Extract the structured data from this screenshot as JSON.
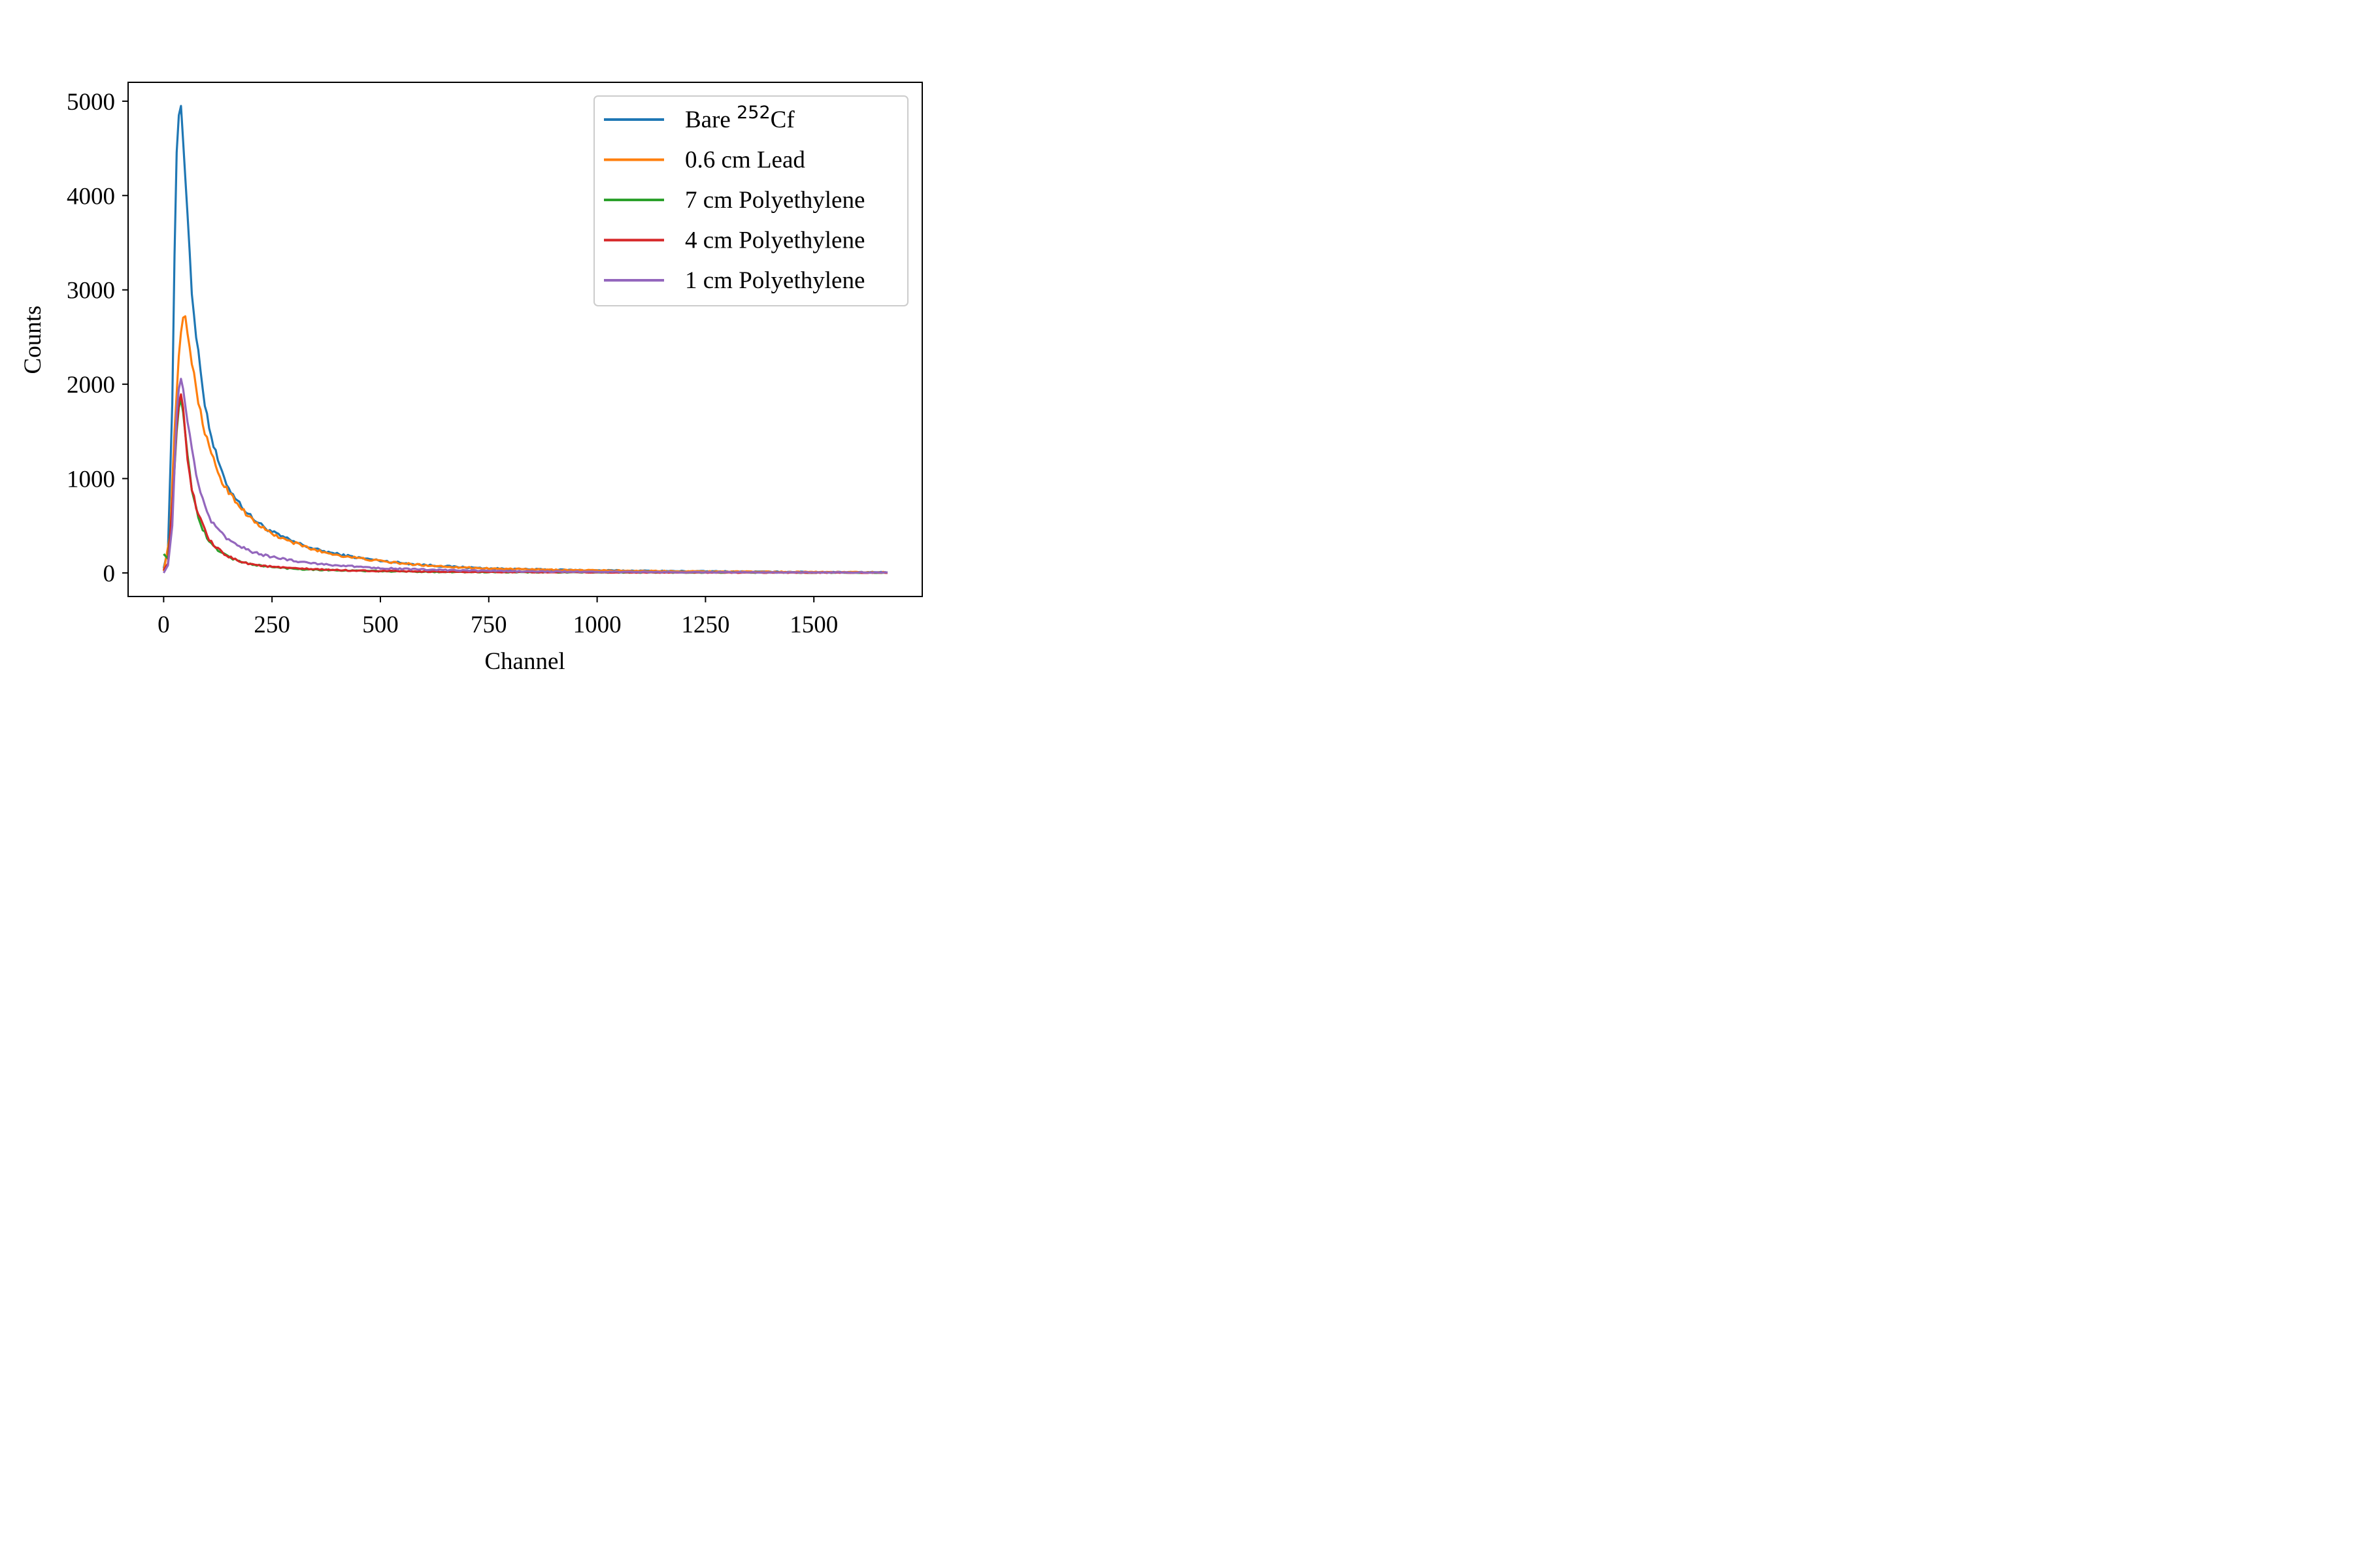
{
  "chart_data": {
    "type": "line",
    "title": "",
    "xlabel": "Channel",
    "ylabel": "Counts",
    "xlim": [
      -82,
      1750
    ],
    "ylim": [
      -250,
      5200
    ],
    "x_ticks": [
      0,
      250,
      500,
      750,
      1000,
      1250,
      1500
    ],
    "x_tick_labels": [
      "0",
      "250",
      "500",
      "750",
      "1000",
      "1250",
      "1500"
    ],
    "y_ticks": [
      0,
      1000,
      2000,
      3000,
      4000,
      5000
    ],
    "y_tick_labels": [
      "0",
      "1000",
      "2000",
      "3000",
      "4000",
      "5000"
    ],
    "grid": false,
    "legend_position": "top-right",
    "x_channel_range": [
      0,
      1670
    ],
    "series": [
      {
        "name": "Bare 252Cf",
        "legend_main": "Bare ",
        "legend_sup": "252",
        "legend_tail": "Cf",
        "color": "#1f77b4",
        "points": [
          [
            0,
            50
          ],
          [
            10,
            250
          ],
          [
            20,
            1800
          ],
          [
            28,
            4300
          ],
          [
            35,
            4850
          ],
          [
            40,
            4950
          ],
          [
            46,
            4500
          ],
          [
            55,
            3800
          ],
          [
            65,
            3000
          ],
          [
            75,
            2500
          ],
          [
            85,
            2150
          ],
          [
            95,
            1800
          ],
          [
            105,
            1550
          ],
          [
            115,
            1350
          ],
          [
            125,
            1200
          ],
          [
            135,
            1050
          ],
          [
            150,
            900
          ],
          [
            170,
            770
          ],
          [
            190,
            650
          ],
          [
            210,
            560
          ],
          [
            240,
            460
          ],
          [
            270,
            390
          ],
          [
            300,
            330
          ],
          [
            350,
            250
          ],
          [
            400,
            200
          ],
          [
            450,
            160
          ],
          [
            500,
            130
          ],
          [
            550,
            105
          ],
          [
            600,
            85
          ],
          [
            650,
            70
          ],
          [
            700,
            58
          ],
          [
            750,
            48
          ],
          [
            800,
            42
          ],
          [
            900,
            33
          ],
          [
            1000,
            27
          ],
          [
            1100,
            22
          ],
          [
            1200,
            18
          ],
          [
            1300,
            15
          ],
          [
            1400,
            12
          ],
          [
            1500,
            10
          ],
          [
            1600,
            8
          ],
          [
            1670,
            7
          ]
        ]
      },
      {
        "name": "0.6 cm Lead",
        "color": "#ff7f0e",
        "points": [
          [
            0,
            20
          ],
          [
            15,
            400
          ],
          [
            25,
            1500
          ],
          [
            35,
            2300
          ],
          [
            43,
            2700
          ],
          [
            50,
            2720
          ],
          [
            56,
            2500
          ],
          [
            65,
            2250
          ],
          [
            75,
            1950
          ],
          [
            85,
            1700
          ],
          [
            95,
            1500
          ],
          [
            105,
            1320
          ],
          [
            115,
            1200
          ],
          [
            125,
            1080
          ],
          [
            135,
            960
          ],
          [
            150,
            860
          ],
          [
            170,
            740
          ],
          [
            190,
            630
          ],
          [
            210,
            540
          ],
          [
            240,
            440
          ],
          [
            270,
            370
          ],
          [
            300,
            320
          ],
          [
            350,
            240
          ],
          [
            400,
            190
          ],
          [
            450,
            155
          ],
          [
            500,
            125
          ],
          [
            550,
            100
          ],
          [
            600,
            82
          ],
          [
            650,
            68
          ],
          [
            700,
            56
          ],
          [
            750,
            47
          ],
          [
            800,
            40
          ],
          [
            900,
            32
          ],
          [
            1000,
            26
          ],
          [
            1100,
            21
          ],
          [
            1200,
            17
          ],
          [
            1300,
            14
          ],
          [
            1400,
            12
          ],
          [
            1500,
            10
          ],
          [
            1600,
            8
          ],
          [
            1670,
            7
          ]
        ]
      },
      {
        "name": "7 cm Polyethylene",
        "color": "#2ca02c",
        "points": [
          [
            0,
            200
          ],
          [
            10,
            150
          ],
          [
            20,
            700
          ],
          [
            30,
            1500
          ],
          [
            38,
            1900
          ],
          [
            45,
            1700
          ],
          [
            55,
            1250
          ],
          [
            65,
            900
          ],
          [
            75,
            680
          ],
          [
            85,
            520
          ],
          [
            95,
            420
          ],
          [
            105,
            330
          ],
          [
            120,
            260
          ],
          [
            140,
            200
          ],
          [
            160,
            150
          ],
          [
            180,
            115
          ],
          [
            200,
            95
          ],
          [
            230,
            72
          ],
          [
            260,
            58
          ],
          [
            300,
            45
          ],
          [
            350,
            35
          ],
          [
            400,
            28
          ],
          [
            450,
            22
          ],
          [
            500,
            18
          ],
          [
            600,
            12
          ],
          [
            700,
            9
          ],
          [
            800,
            7
          ],
          [
            1000,
            5
          ],
          [
            1200,
            4
          ],
          [
            1400,
            3
          ],
          [
            1670,
            2
          ]
        ]
      },
      {
        "name": "4 cm Polyethylene",
        "color": "#d62728",
        "points": [
          [
            0,
            30
          ],
          [
            10,
            100
          ],
          [
            20,
            700
          ],
          [
            30,
            1550
          ],
          [
            38,
            1950
          ],
          [
            45,
            1750
          ],
          [
            55,
            1200
          ],
          [
            65,
            900
          ],
          [
            75,
            700
          ],
          [
            85,
            560
          ],
          [
            95,
            450
          ],
          [
            105,
            350
          ],
          [
            120,
            270
          ],
          [
            140,
            200
          ],
          [
            160,
            150
          ],
          [
            180,
            120
          ],
          [
            200,
            95
          ],
          [
            230,
            75
          ],
          [
            260,
            60
          ],
          [
            300,
            48
          ],
          [
            350,
            38
          ],
          [
            400,
            30
          ],
          [
            450,
            24
          ],
          [
            500,
            20
          ],
          [
            600,
            14
          ],
          [
            700,
            10
          ],
          [
            800,
            8
          ],
          [
            1000,
            6
          ],
          [
            1200,
            4
          ],
          [
            1400,
            3
          ],
          [
            1670,
            2
          ]
        ]
      },
      {
        "name": "1 cm Polyethylene",
        "color": "#9467bd",
        "points": [
          [
            0,
            0
          ],
          [
            10,
            80
          ],
          [
            20,
            500
          ],
          [
            30,
            1700
          ],
          [
            38,
            2100
          ],
          [
            45,
            1950
          ],
          [
            55,
            1600
          ],
          [
            65,
            1350
          ],
          [
            75,
            1050
          ],
          [
            85,
            850
          ],
          [
            95,
            700
          ],
          [
            105,
            580
          ],
          [
            120,
            480
          ],
          [
            140,
            390
          ],
          [
            160,
            320
          ],
          [
            180,
            270
          ],
          [
            200,
            230
          ],
          [
            230,
            190
          ],
          [
            260,
            160
          ],
          [
            300,
            130
          ],
          [
            350,
            100
          ],
          [
            400,
            80
          ],
          [
            450,
            65
          ],
          [
            500,
            52
          ],
          [
            550,
            43
          ],
          [
            600,
            35
          ],
          [
            700,
            25
          ],
          [
            800,
            18
          ],
          [
            900,
            14
          ],
          [
            1000,
            11
          ],
          [
            1200,
            8
          ],
          [
            1400,
            6
          ],
          [
            1670,
            5
          ]
        ]
      }
    ]
  }
}
